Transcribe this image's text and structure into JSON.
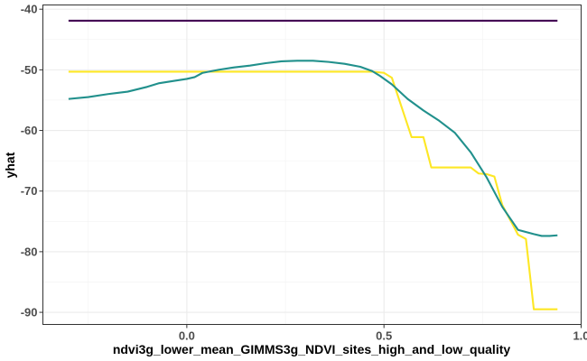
{
  "chart_data": {
    "type": "line",
    "title": "",
    "xlabel": "ndvi3g_lower_mean_GIMMS3g_NDVI_sites_high_and_low_quality",
    "ylabel": "yhat",
    "xlim": [
      -0.365,
      1.0
    ],
    "ylim": [
      -92,
      -39.3
    ],
    "x_ticks": [
      0.0,
      0.5,
      1.0
    ],
    "x_tick_labels": [
      "0.0",
      "0.5",
      "1.0"
    ],
    "y_ticks": [
      -40,
      -50,
      -60,
      -70,
      -80,
      -90
    ],
    "y_tick_labels": [
      "-40",
      "-50",
      "-60",
      "-70",
      "-80",
      "-90"
    ],
    "grid": true,
    "legend": "none",
    "series": [
      {
        "color": "#440154",
        "x": [
          -0.3,
          0.94
        ],
        "y": [
          -41.9,
          -41.9
        ]
      },
      {
        "color": "#FDE725",
        "x": [
          -0.3,
          0.47,
          0.5,
          0.52,
          0.57,
          0.6,
          0.62,
          0.72,
          0.74,
          0.76,
          0.78,
          0.8,
          0.84,
          0.86,
          0.88,
          0.94
        ],
        "y": [
          -50.3,
          -50.3,
          -50.5,
          -51.3,
          -61.1,
          -61.1,
          -66.1,
          -66.1,
          -67.1,
          -67.2,
          -67.6,
          -72.3,
          -77.2,
          -77.9,
          -89.5,
          -89.5
        ]
      },
      {
        "color": "#21908C",
        "x": [
          -0.3,
          -0.25,
          -0.2,
          -0.15,
          -0.1,
          -0.07,
          -0.05,
          -0.03,
          0.0,
          0.02,
          0.04,
          0.08,
          0.12,
          0.16,
          0.2,
          0.24,
          0.28,
          0.32,
          0.36,
          0.4,
          0.44,
          0.47,
          0.49,
          0.52,
          0.56,
          0.6,
          0.64,
          0.68,
          0.72,
          0.76,
          0.8,
          0.84,
          0.88,
          0.9,
          0.92,
          0.94
        ],
        "y": [
          -54.8,
          -54.5,
          -54.0,
          -53.6,
          -52.8,
          -52.2,
          -52.0,
          -51.8,
          -51.5,
          -51.2,
          -50.5,
          -50.0,
          -49.6,
          -49.3,
          -48.9,
          -48.6,
          -48.5,
          -48.5,
          -48.7,
          -49.0,
          -49.5,
          -50.2,
          -51.0,
          -52.4,
          -54.8,
          -56.7,
          -58.4,
          -60.4,
          -63.6,
          -67.7,
          -72.6,
          -76.4,
          -77.1,
          -77.4,
          -77.4,
          -77.3
        ]
      }
    ]
  }
}
